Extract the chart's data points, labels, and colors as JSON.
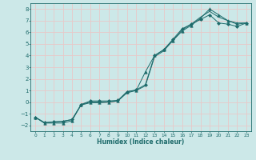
{
  "xlabel": "Humidex (Indice chaleur)",
  "xlim": [
    -0.5,
    23.5
  ],
  "ylim": [
    -2.5,
    8.5
  ],
  "xticks": [
    0,
    1,
    2,
    3,
    4,
    5,
    6,
    7,
    8,
    9,
    10,
    11,
    12,
    13,
    14,
    15,
    16,
    17,
    18,
    19,
    20,
    21,
    22,
    23
  ],
  "yticks": [
    -2,
    -1,
    0,
    1,
    2,
    3,
    4,
    5,
    6,
    7,
    8
  ],
  "background_color": "#cce8e8",
  "line_color": "#1e6b6b",
  "grid_color": "#e8c8c8",
  "series": [
    {
      "x": [
        0,
        1,
        2,
        3,
        4,
        5,
        6,
        7,
        8,
        9,
        10,
        11,
        12,
        13,
        14,
        15,
        16,
        17,
        18,
        19,
        20,
        21,
        22,
        23
      ],
      "y": [
        -1.3,
        -1.8,
        -1.8,
        -1.8,
        -1.6,
        -0.2,
        0.0,
        0.0,
        0.0,
        0.1,
        0.9,
        1.0,
        2.6,
        4.0,
        4.5,
        5.3,
        6.1,
        6.6,
        7.2,
        8.0,
        7.5,
        7.0,
        6.8,
        6.8
      ],
      "marker": "^",
      "markersize": 2.5
    },
    {
      "x": [
        0,
        1,
        2,
        3,
        4,
        5,
        6,
        7,
        8,
        9,
        10,
        11,
        12,
        13,
        14,
        15,
        16,
        17,
        18,
        19,
        20,
        21,
        22,
        23
      ],
      "y": [
        -1.3,
        -1.8,
        -1.7,
        -1.65,
        -1.5,
        -0.25,
        -0.05,
        -0.05,
        0.0,
        0.1,
        0.8,
        1.0,
        1.4,
        3.9,
        4.4,
        5.3,
        6.2,
        6.7,
        7.3,
        7.8,
        7.3,
        7.0,
        6.7,
        6.8
      ],
      "marker": null,
      "markersize": 0
    },
    {
      "x": [
        0,
        1,
        2,
        3,
        4,
        5,
        6,
        7,
        8,
        9,
        10,
        11,
        12,
        13,
        14,
        15,
        16,
        17,
        18,
        19,
        20,
        21,
        22,
        23
      ],
      "y": [
        -1.3,
        -1.75,
        -1.7,
        -1.65,
        -1.5,
        -0.2,
        0.1,
        0.1,
        0.1,
        0.15,
        0.9,
        1.05,
        1.5,
        4.0,
        4.5,
        5.4,
        6.3,
        6.7,
        7.1,
        7.5,
        6.8,
        6.7,
        6.5,
        6.8
      ],
      "marker": "D",
      "markersize": 2.0
    }
  ]
}
